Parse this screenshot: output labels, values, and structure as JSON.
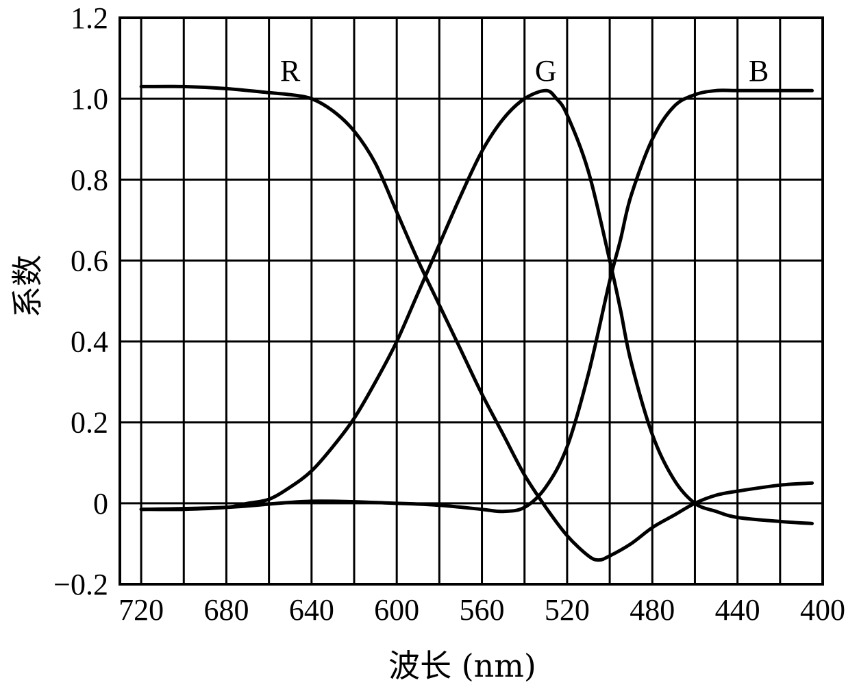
{
  "chart_data": {
    "type": "line",
    "xlabel": "波长 (nm)",
    "ylabel": "系数",
    "xlim": [
      400,
      730
    ],
    "ylim": [
      -0.2,
      1.2
    ],
    "x_reversed": true,
    "grid": true,
    "x_ticks": [
      720,
      680,
      640,
      600,
      560,
      520,
      480,
      440,
      400
    ],
    "x_tick_labels": [
      "720",
      "680",
      "640",
      "600",
      "560",
      "520",
      "480",
      "440",
      "400"
    ],
    "y_ticks": [
      1.2,
      1.0,
      0.8,
      0.6,
      0.4,
      0.2,
      0,
      -0.2
    ],
    "y_tick_labels": [
      "1.2",
      "1.0",
      "0.8",
      "0.6",
      "0.4",
      "0.2",
      "0",
      "−0.2"
    ],
    "series": [
      {
        "name": "R",
        "label_at": [
          650,
          1.07
        ],
        "x": [
          720,
          700,
          680,
          660,
          650,
          640,
          630,
          620,
          610,
          600,
          590,
          580,
          570,
          560,
          550,
          540,
          530,
          520,
          510,
          505,
          500,
          490,
          480,
          470,
          460,
          450,
          440,
          420,
          405
        ],
        "y": [
          1.03,
          1.03,
          1.025,
          1.015,
          1.01,
          1.0,
          0.97,
          0.92,
          0.84,
          0.72,
          0.6,
          0.49,
          0.38,
          0.27,
          0.17,
          0.07,
          -0.01,
          -0.08,
          -0.13,
          -0.14,
          -0.13,
          -0.1,
          -0.06,
          -0.03,
          0.0,
          0.02,
          0.03,
          0.045,
          0.05
        ]
      },
      {
        "name": "G",
        "label_at": [
          530,
          1.07
        ],
        "x": [
          720,
          700,
          680,
          670,
          660,
          650,
          640,
          630,
          620,
          610,
          600,
          590,
          580,
          570,
          560,
          550,
          540,
          530,
          525,
          520,
          510,
          500,
          495,
          490,
          480,
          470,
          460,
          450,
          440,
          420,
          405
        ],
        "y": [
          -0.015,
          -0.015,
          -0.01,
          0.0,
          0.01,
          0.04,
          0.08,
          0.14,
          0.21,
          0.3,
          0.4,
          0.52,
          0.64,
          0.76,
          0.87,
          0.95,
          1.0,
          1.02,
          1.0,
          0.96,
          0.82,
          0.6,
          0.48,
          0.35,
          0.17,
          0.06,
          0.0,
          -0.02,
          -0.035,
          -0.045,
          -0.05
        ]
      },
      {
        "name": "B",
        "label_at": [
          430,
          1.07
        ],
        "x": [
          720,
          680,
          640,
          600,
          580,
          560,
          550,
          540,
          530,
          520,
          510,
          500,
          495,
          490,
          480,
          470,
          460,
          450,
          440,
          420,
          405
        ],
        "y": [
          -0.015,
          -0.01,
          0.005,
          0.0,
          -0.005,
          -0.015,
          -0.02,
          -0.01,
          0.04,
          0.14,
          0.32,
          0.55,
          0.65,
          0.76,
          0.9,
          0.98,
          1.01,
          1.02,
          1.02,
          1.02,
          1.02
        ]
      }
    ]
  }
}
